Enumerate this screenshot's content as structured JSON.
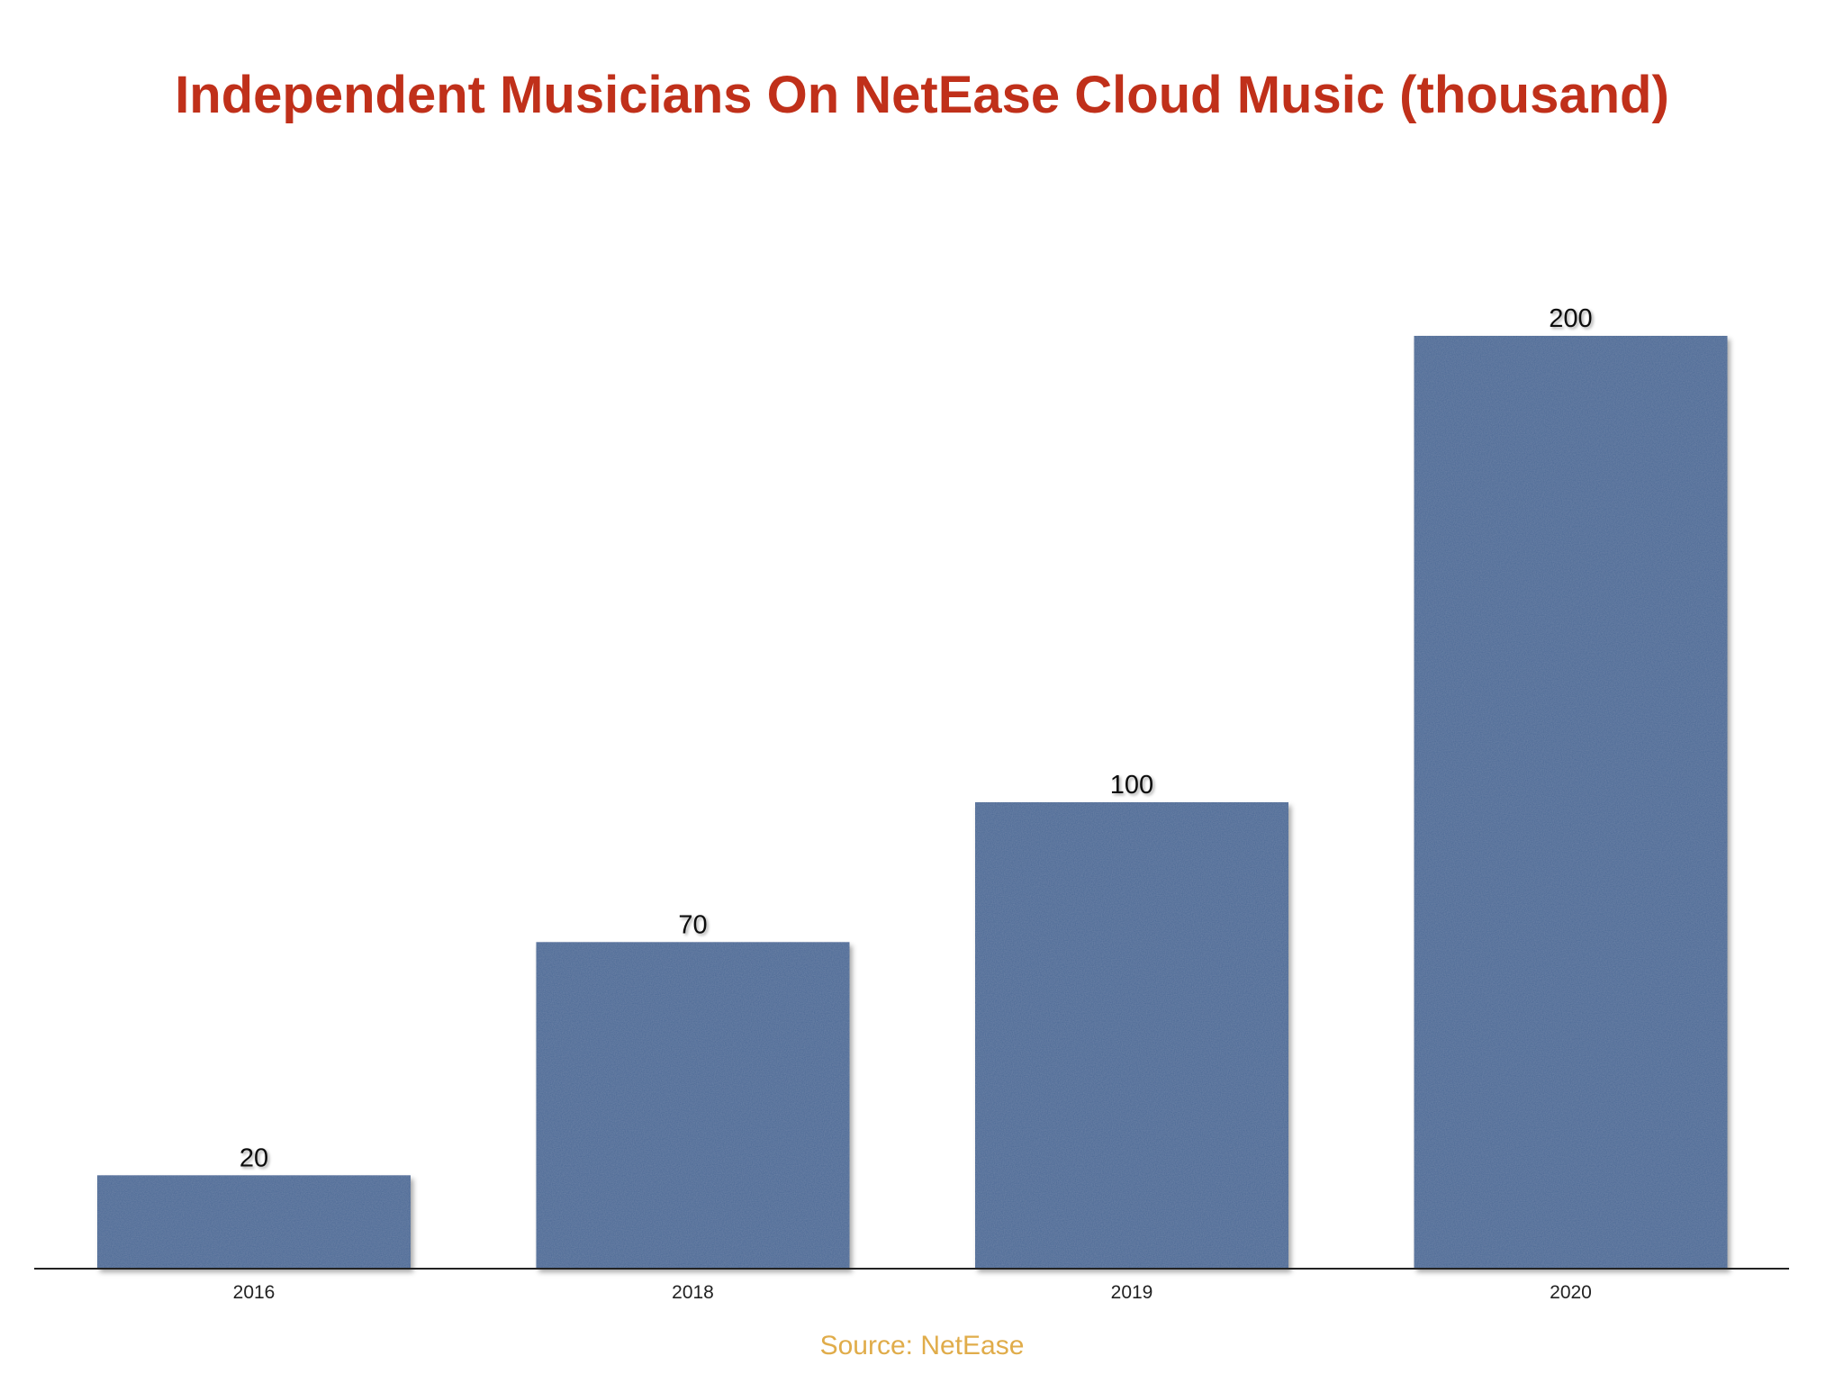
{
  "title": "Independent Musicians On NetEase Cloud Music (thousand)",
  "source": "Source: NetEase",
  "colors": {
    "title": "#c0301a",
    "bar": "#4a6794",
    "source": "#e0ac4a",
    "axis": "#222222"
  },
  "chart_data": {
    "type": "bar",
    "categories": [
      "2016",
      "2018",
      "2019",
      "2020"
    ],
    "values": [
      20,
      70,
      100,
      200
    ],
    "data_labels": [
      "20",
      "70",
      "100",
      "200"
    ],
    "title": "Independent Musicians On NetEase Cloud Music (thousand)",
    "xlabel": "",
    "ylabel": "",
    "ylim": [
      0,
      200
    ],
    "grid": false,
    "legend": "none"
  }
}
